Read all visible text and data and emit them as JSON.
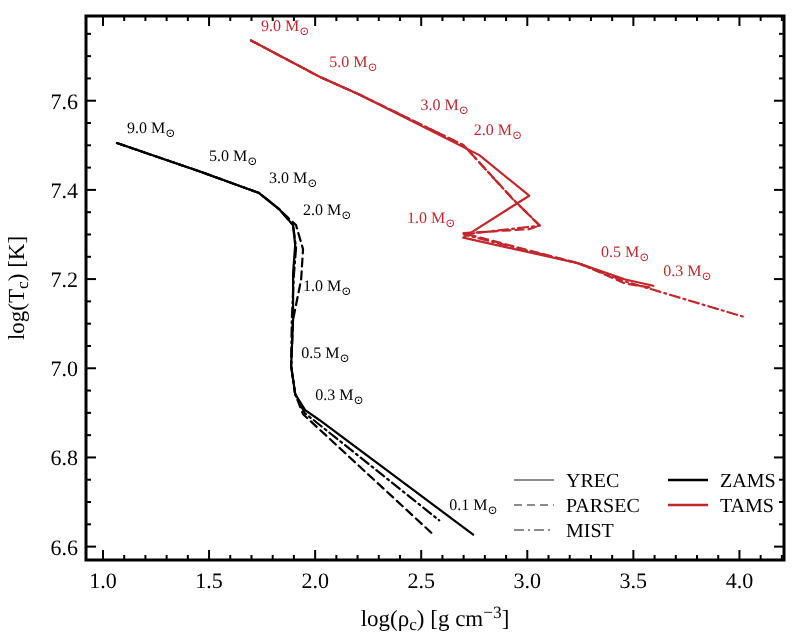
{
  "chart_data": {
    "type": "line",
    "xlabel": "log(ρ$_{c}$) [g cm$^{−3}$]",
    "ylabel": "log(T$_{c}$) [K]",
    "xlim": [
      0.92,
      4.21
    ],
    "ylim": [
      6.57,
      7.79
    ],
    "xticks": [
      {
        "value": 1,
        "label": "1.0"
      },
      {
        "value": 1.1,
        "label": null
      },
      {
        "value": 1.2,
        "label": null
      },
      {
        "value": 1.3,
        "label": null
      },
      {
        "value": 1.4,
        "label": null
      },
      1.5,
      {
        "value": 1.6,
        "label": null
      },
      {
        "value": 1.7,
        "label": null
      },
      {
        "value": 1.8,
        "label": null
      },
      {
        "value": 1.9,
        "label": null
      },
      {
        "value": 2,
        "label": "2.0"
      },
      {
        "value": 2.1,
        "label": null
      },
      {
        "value": 2.2,
        "label": null
      },
      {
        "value": 2.3,
        "label": null
      },
      {
        "value": 2.4,
        "label": null
      },
      2.5,
      {
        "value": 2.6,
        "label": null
      },
      {
        "value": 2.7,
        "label": null
      },
      {
        "value": 2.8,
        "label": null
      },
      {
        "value": 2.9,
        "label": null
      },
      {
        "value": 3,
        "label": "3.0"
      },
      {
        "value": 3.1,
        "label": null
      },
      {
        "value": 3.2,
        "label": null
      },
      {
        "value": 3.3,
        "label": null
      },
      {
        "value": 3.4,
        "label": null
      },
      3.5,
      {
        "value": 3.6,
        "label": null
      },
      {
        "value": 3.7,
        "label": null
      },
      {
        "value": 3.8,
        "label": null
      },
      {
        "value": 3.9,
        "label": null
      },
      {
        "value": 4,
        "label": "4.0"
      },
      {
        "value": 4.1,
        "label": null
      },
      {
        "value": 4.2,
        "label": null
      }
    ],
    "yticks": [
      6.6,
      {
        "value": 6.65,
        "label": null
      },
      {
        "value": 6.7,
        "label": null
      },
      {
        "value": 6.75,
        "label": null
      },
      6.8,
      {
        "value": 6.85,
        "label": null
      },
      {
        "value": 6.9,
        "label": null
      },
      {
        "value": 6.95,
        "label": null
      },
      {
        "value": 7,
        "label": "7.0"
      },
      {
        "value": 7.05,
        "label": null
      },
      {
        "value": 7.1,
        "label": null
      },
      {
        "value": 7.15,
        "label": null
      },
      7.2,
      {
        "value": 7.25,
        "label": null
      },
      {
        "value": 7.3,
        "label": null
      },
      {
        "value": 7.35,
        "label": null
      },
      7.4,
      {
        "value": 7.45,
        "label": null
      },
      {
        "value": 7.5,
        "label": null
      },
      {
        "value": 7.55,
        "label": null
      },
      7.6,
      {
        "value": 7.65,
        "label": null
      },
      {
        "value": 7.7,
        "label": null
      },
      {
        "value": 7.75,
        "label": null
      }
    ],
    "grid": false,
    "legend": "bottom right",
    "marker": "none",
    "series": [
      {
        "name": "YREC",
        "color": "#000000",
        "line_style": "solid",
        "x": [
          1.066,
          1.453,
          1.736,
          1.83,
          1.896,
          1.906,
          1.896,
          1.896,
          1.887,
          1.906,
          1.953,
          2.02,
          2.745
        ],
        "values": [
          7.505,
          7.442,
          7.393,
          7.357,
          7.321,
          7.276,
          7.213,
          7.109,
          7.005,
          6.942,
          6.906,
          6.884,
          6.627
        ]
      },
      {
        "name": "PARSEC",
        "color": "#000000",
        "line_style": "dashed",
        "x": [
          1.066,
          1.453,
          1.736,
          1.83,
          1.91,
          1.943,
          1.934,
          1.896,
          1.887,
          1.906,
          1.943,
          2.557
        ],
        "values": [
          7.505,
          7.442,
          7.393,
          7.357,
          7.321,
          7.267,
          7.199,
          7.109,
          7.005,
          6.942,
          6.897,
          6.627
        ]
      },
      {
        "name": "MIST",
        "color": "#000000",
        "line_style": "dashdot",
        "x": [
          1.066,
          1.453,
          1.736,
          1.83,
          1.896,
          1.91,
          1.9,
          1.89,
          1.887,
          1.906,
          1.95,
          2.585
        ],
        "values": [
          7.505,
          7.442,
          7.393,
          7.357,
          7.321,
          7.27,
          7.21,
          7.109,
          7.005,
          6.942,
          6.9,
          6.659
        ]
      },
      {
        "name": "TAMS",
        "color": "#c0282d",
        "line_style": "solid",
        "x": [
          1.698,
          2.02,
          2.208,
          2.774,
          3.009,
          2.698,
          3.245,
          3.462,
          3.594
        ],
        "values": [
          7.735,
          7.654,
          7.614,
          7.478,
          7.387,
          7.293,
          7.235,
          7.199,
          7.185
        ]
      },
      {
        "color": "#c0282d",
        "line_style": "dashed",
        "x": [
          1.698,
          2.02,
          2.208,
          2.7,
          2.934,
          3.057,
          3.009,
          2.698,
          3.245,
          3.462,
          3.594
        ],
        "values": [
          7.735,
          7.654,
          7.614,
          7.5,
          7.379,
          7.32,
          7.312,
          7.303,
          7.235,
          7.19,
          7.18
        ]
      },
      {
        "color": "#c0282d",
        "line_style": "dashdot",
        "x": [
          1.698,
          2.02,
          2.208,
          2.7,
          2.93,
          3.06,
          2.7,
          3.24,
          3.46,
          4.03
        ],
        "values": [
          7.735,
          7.654,
          7.614,
          7.5,
          7.38,
          7.32,
          7.3,
          7.235,
          7.195,
          7.114
        ]
      }
    ],
    "annotations": [
      {
        "text": "9.0 M$_{⊙}$",
        "x": 1.066,
        "y": 7.505
      },
      {
        "text": "5.0 M$_{⊙}$",
        "x": 1.453,
        "y": 7.442
      },
      {
        "text": "3.0 M$_{⊙}$",
        "x": 1.736,
        "y": 7.393
      },
      {
        "text": "2.0 M$_{⊙}$",
        "x": 1.896,
        "y": 7.321
      },
      {
        "text": "1.0 M$_{⊙}$",
        "x": 1.896,
        "y": 7.15
      },
      {
        "text": "0.5 M$_{⊙}$",
        "x": 1.887,
        "y": 7.0
      },
      {
        "text": "0.3 M$_{⊙}$",
        "x": 1.953,
        "y": 6.906
      },
      {
        "text": "0.1 M$_{⊙}$",
        "x": 2.585,
        "y": 6.659
      },
      {
        "text": "9.0 M$_{⊙}$",
        "x": 1.698,
        "y": 7.735
      },
      {
        "text": "5.0 M$_{⊙}$",
        "x": 2.02,
        "y": 7.654
      },
      {
        "text": "3.0 M$_{⊙}$",
        "x": 2.45,
        "y": 7.556
      },
      {
        "text": "2.0 M$_{⊙}$",
        "x": 2.7,
        "y": 7.5
      },
      {
        "text": "1.0 M$_{⊙}$",
        "x": 2.698,
        "y": 7.303
      },
      {
        "text": "0.5 M$_{⊙}$",
        "x": 3.3,
        "y": 7.226
      },
      {
        "text": "0.3 M$_{⊙}$",
        "x": 3.594,
        "y": 7.185
      },
      "ZAMS"
    ]
  }
}
